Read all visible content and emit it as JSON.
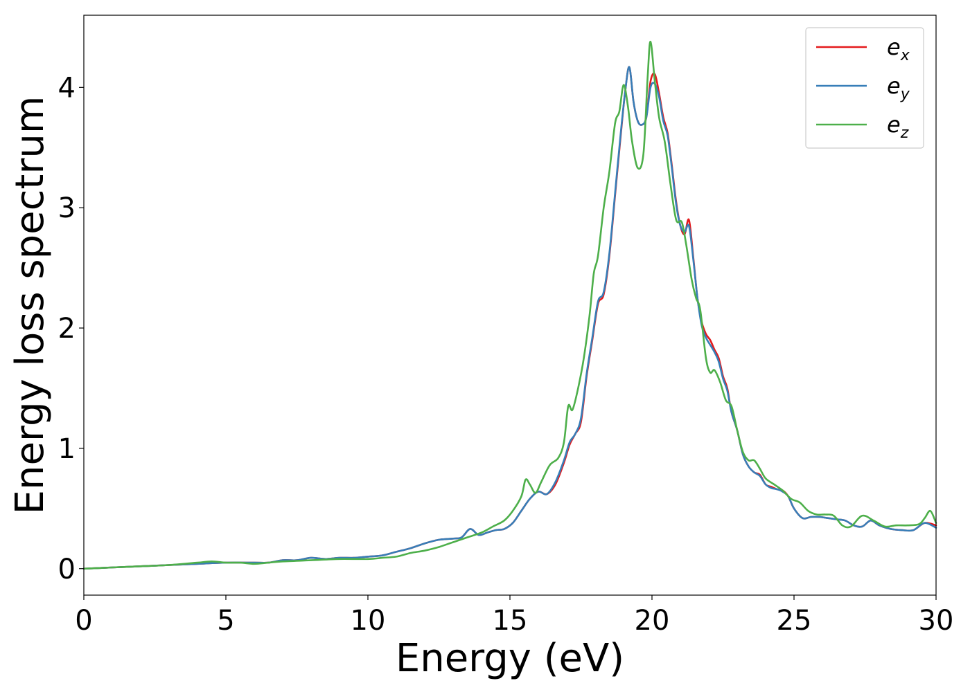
{
  "chart_data": {
    "type": "line",
    "title": "",
    "xlabel": "Energy (eV)",
    "ylabel": "Energy loss spectrum",
    "xlim": [
      0,
      30
    ],
    "ylim": [
      -0.22,
      4.6
    ],
    "xticks": [
      0,
      5,
      10,
      15,
      20,
      25,
      30
    ],
    "yticks": [
      0,
      1,
      2,
      3,
      4
    ],
    "grid": false,
    "legend_position": "top-right",
    "series": [
      {
        "name": "e_x",
        "legend_base": "e",
        "legend_sub": "x",
        "color": "#e41a1c",
        "x": [
          0,
          1,
          2,
          3,
          4,
          5,
          6,
          6.5,
          7,
          7.5,
          8,
          8.5,
          9,
          9.5,
          10,
          10.5,
          11,
          11.5,
          12,
          12.5,
          13,
          13.3,
          13.6,
          13.9,
          14.2,
          14.5,
          14.8,
          15.1,
          15.4,
          15.7,
          16.0,
          16.3,
          16.6,
          16.9,
          17.1,
          17.3,
          17.5,
          17.7,
          17.9,
          18.1,
          18.3,
          18.5,
          18.7,
          18.9,
          19.05,
          19.2,
          19.35,
          19.5,
          19.65,
          19.8,
          19.95,
          20.1,
          20.25,
          20.4,
          20.55,
          20.7,
          20.85,
          21.0,
          21.15,
          21.3,
          21.45,
          21.6,
          21.75,
          21.9,
          22.05,
          22.2,
          22.35,
          22.5,
          22.65,
          22.8,
          23.0,
          23.2,
          23.4,
          23.6,
          23.8,
          24.0,
          24.2,
          24.4,
          24.6,
          24.8,
          25.0,
          25.3,
          25.6,
          25.9,
          26.2,
          26.5,
          26.8,
          27.1,
          27.4,
          27.7,
          28.0,
          28.4,
          28.8,
          29.2,
          29.6,
          30.0
        ],
        "values": [
          0.0,
          0.01,
          0.02,
          0.03,
          0.04,
          0.05,
          0.05,
          0.05,
          0.07,
          0.07,
          0.09,
          0.08,
          0.09,
          0.09,
          0.1,
          0.11,
          0.14,
          0.17,
          0.21,
          0.24,
          0.25,
          0.26,
          0.33,
          0.28,
          0.3,
          0.32,
          0.33,
          0.38,
          0.48,
          0.58,
          0.64,
          0.62,
          0.7,
          0.88,
          1.03,
          1.12,
          1.22,
          1.6,
          1.9,
          2.2,
          2.28,
          2.6,
          3.1,
          3.6,
          3.95,
          4.17,
          3.88,
          3.72,
          3.69,
          3.75,
          4.05,
          4.11,
          3.95,
          3.75,
          3.62,
          3.35,
          3.05,
          2.85,
          2.78,
          2.9,
          2.6,
          2.25,
          2.05,
          1.95,
          1.9,
          1.82,
          1.75,
          1.6,
          1.5,
          1.3,
          1.15,
          0.95,
          0.85,
          0.8,
          0.78,
          0.7,
          0.68,
          0.66,
          0.65,
          0.6,
          0.5,
          0.42,
          0.43,
          0.43,
          0.42,
          0.41,
          0.4,
          0.36,
          0.35,
          0.4,
          0.36,
          0.33,
          0.32,
          0.32,
          0.38,
          0.36
        ]
      },
      {
        "name": "e_y",
        "legend_base": "e",
        "legend_sub": "y",
        "color": "#377eb8",
        "x": [
          0,
          1,
          2,
          3,
          4,
          5,
          6,
          6.5,
          7,
          7.5,
          8,
          8.5,
          9,
          9.5,
          10,
          10.5,
          11,
          11.5,
          12,
          12.5,
          13,
          13.3,
          13.6,
          13.9,
          14.2,
          14.5,
          14.8,
          15.1,
          15.4,
          15.7,
          16.0,
          16.3,
          16.6,
          16.9,
          17.1,
          17.3,
          17.5,
          17.7,
          17.9,
          18.1,
          18.3,
          18.5,
          18.7,
          18.9,
          19.05,
          19.2,
          19.35,
          19.5,
          19.65,
          19.8,
          19.95,
          20.1,
          20.25,
          20.4,
          20.55,
          20.7,
          20.85,
          21.0,
          21.15,
          21.3,
          21.45,
          21.6,
          21.75,
          21.9,
          22.05,
          22.2,
          22.35,
          22.5,
          22.65,
          22.8,
          23.0,
          23.2,
          23.4,
          23.6,
          23.8,
          24.0,
          24.2,
          24.4,
          24.6,
          24.8,
          25.0,
          25.3,
          25.6,
          25.9,
          26.2,
          26.5,
          26.8,
          27.1,
          27.4,
          27.7,
          28.0,
          28.4,
          28.8,
          29.2,
          29.6,
          30.0
        ],
        "values": [
          0.0,
          0.01,
          0.02,
          0.03,
          0.04,
          0.05,
          0.05,
          0.05,
          0.07,
          0.07,
          0.09,
          0.08,
          0.09,
          0.09,
          0.1,
          0.11,
          0.14,
          0.17,
          0.21,
          0.24,
          0.25,
          0.26,
          0.33,
          0.28,
          0.3,
          0.32,
          0.33,
          0.38,
          0.48,
          0.58,
          0.64,
          0.62,
          0.72,
          0.9,
          1.05,
          1.12,
          1.25,
          1.62,
          1.92,
          2.22,
          2.3,
          2.62,
          3.12,
          3.62,
          3.95,
          4.17,
          3.88,
          3.72,
          3.69,
          3.75,
          4.0,
          4.03,
          3.92,
          3.72,
          3.6,
          3.33,
          3.03,
          2.85,
          2.8,
          2.85,
          2.58,
          2.25,
          2.02,
          1.92,
          1.86,
          1.8,
          1.72,
          1.58,
          1.48,
          1.3,
          1.15,
          0.95,
          0.85,
          0.8,
          0.77,
          0.7,
          0.67,
          0.66,
          0.64,
          0.6,
          0.5,
          0.42,
          0.43,
          0.43,
          0.42,
          0.41,
          0.4,
          0.36,
          0.35,
          0.4,
          0.36,
          0.33,
          0.32,
          0.32,
          0.38,
          0.34
        ]
      },
      {
        "name": "e_z",
        "legend_base": "e",
        "legend_sub": "z",
        "color": "#4daf4a",
        "x": [
          0,
          1,
          2,
          3,
          4,
          4.5,
          5,
          5.5,
          6,
          6.5,
          7,
          8,
          9,
          10,
          10.5,
          11,
          11.5,
          12,
          12.5,
          13,
          13.5,
          14,
          14.4,
          14.8,
          15.1,
          15.4,
          15.55,
          15.7,
          15.9,
          16.1,
          16.4,
          16.7,
          16.9,
          17.05,
          17.2,
          17.4,
          17.6,
          17.8,
          17.95,
          18.1,
          18.3,
          18.5,
          18.7,
          18.85,
          19.0,
          19.15,
          19.3,
          19.5,
          19.7,
          19.85,
          19.95,
          20.1,
          20.25,
          20.45,
          20.65,
          20.85,
          21.05,
          21.2,
          21.4,
          21.55,
          21.7,
          21.9,
          22.05,
          22.2,
          22.4,
          22.6,
          22.8,
          23.0,
          23.2,
          23.4,
          23.6,
          23.8,
          24.0,
          24.3,
          24.6,
          24.9,
          25.2,
          25.5,
          25.8,
          26.1,
          26.4,
          26.7,
          27.0,
          27.4,
          27.8,
          28.2,
          28.6,
          29.0,
          29.4,
          29.6,
          29.8,
          30.0
        ],
        "values": [
          0.0,
          0.01,
          0.02,
          0.03,
          0.05,
          0.06,
          0.05,
          0.05,
          0.04,
          0.05,
          0.06,
          0.07,
          0.08,
          0.08,
          0.09,
          0.1,
          0.13,
          0.15,
          0.18,
          0.22,
          0.26,
          0.3,
          0.35,
          0.4,
          0.48,
          0.6,
          0.74,
          0.7,
          0.63,
          0.72,
          0.86,
          0.92,
          1.05,
          1.35,
          1.32,
          1.5,
          1.75,
          2.1,
          2.45,
          2.6,
          3.0,
          3.3,
          3.7,
          3.8,
          4.02,
          3.85,
          3.55,
          3.33,
          3.45,
          4.1,
          4.38,
          4.05,
          3.75,
          3.55,
          3.2,
          2.9,
          2.88,
          2.7,
          2.4,
          2.25,
          2.15,
          1.75,
          1.63,
          1.65,
          1.55,
          1.4,
          1.35,
          1.15,
          0.97,
          0.9,
          0.9,
          0.83,
          0.75,
          0.7,
          0.65,
          0.58,
          0.55,
          0.48,
          0.45,
          0.45,
          0.44,
          0.36,
          0.35,
          0.44,
          0.4,
          0.35,
          0.36,
          0.36,
          0.37,
          0.42,
          0.48,
          0.38
        ]
      }
    ]
  }
}
